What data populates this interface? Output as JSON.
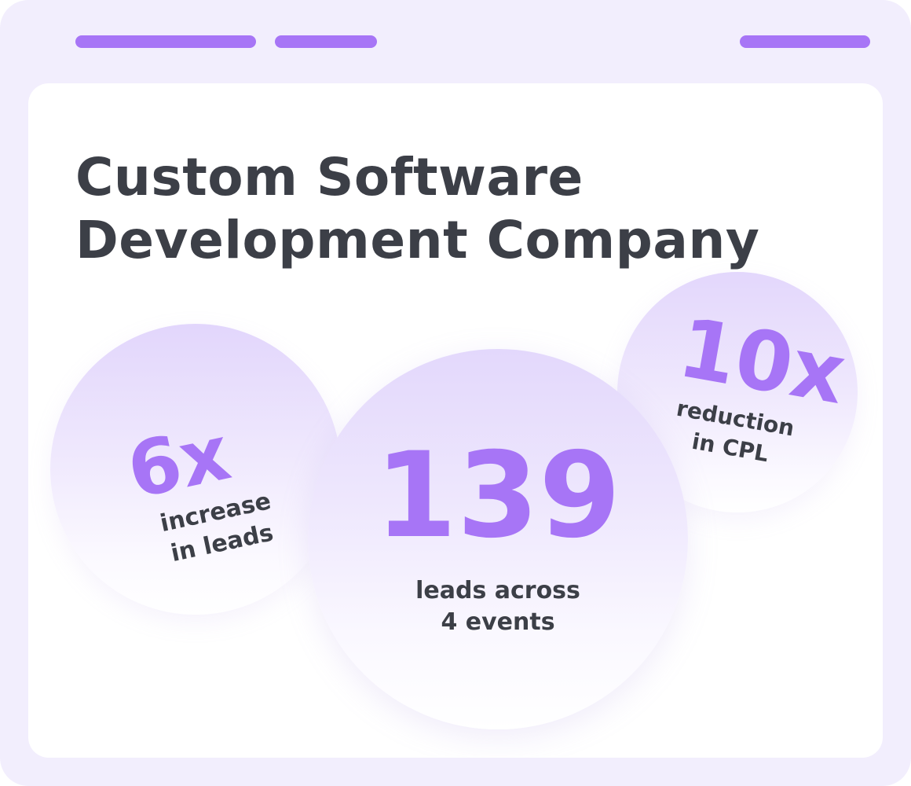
{
  "colors": {
    "frame_bg": "#f2eefd",
    "card_bg": "#ffffff",
    "accent": "#a775f6",
    "text_dark": "#3c3f47",
    "pill": "#a775f6"
  },
  "title": {
    "line1": "Custom Software",
    "line2": "Development Company"
  },
  "stats": {
    "left": {
      "value": "6x",
      "label_line1": "increase",
      "label_line2": "in leads"
    },
    "center": {
      "value": "139",
      "label_line1": "leads across",
      "label_line2": "4 events"
    },
    "right": {
      "value": "10x",
      "label_line1": "reduction",
      "label_line2": "in CPL"
    }
  }
}
